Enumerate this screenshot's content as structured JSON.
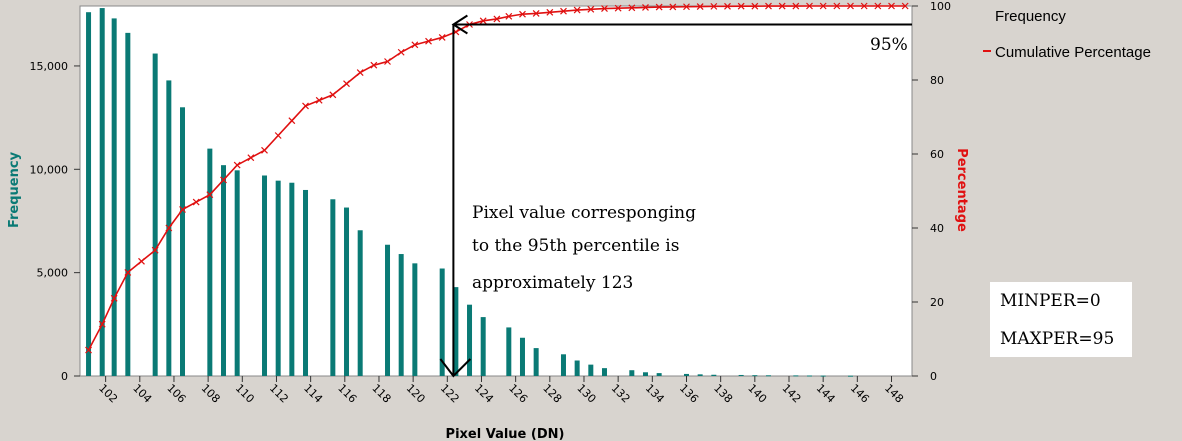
{
  "chart_data": {
    "type": "bar",
    "xlabel": "Pixel Value (DN)",
    "ylabel": "Frequency",
    "y2label": "Percentage",
    "xlim": [
      100.5,
      149.2
    ],
    "ylim": [
      0,
      17900
    ],
    "y2lim": [
      0,
      100
    ],
    "x_ticks": [
      102,
      104,
      106,
      108,
      110,
      112,
      114,
      116,
      118,
      120,
      122,
      124,
      126,
      128,
      130,
      132,
      134,
      136,
      138,
      140,
      142,
      144,
      146,
      148
    ],
    "y_ticks": [
      0,
      5000,
      10000,
      15000
    ],
    "y_tick_labels": [
      "0",
      "5,000",
      "10,000",
      "15,000"
    ],
    "y2_ticks": [
      0,
      20,
      40,
      60,
      80,
      100
    ],
    "y2_tick_labels": [
      "0",
      "20",
      "40",
      "60",
      "80",
      "100"
    ],
    "bar_color": "#0a7a75",
    "line_color": "#e01010",
    "legend": {
      "position": "top-right",
      "items": [
        {
          "label": "Frequency",
          "marker": "none"
        },
        {
          "label": "Cumulative Percentage",
          "marker": "line",
          "color": "#e01010"
        }
      ]
    },
    "series": [
      {
        "name": "Frequency",
        "kind": "bar",
        "x": [
          101,
          101.8,
          102.5,
          103.3,
          104.9,
          105.7,
          106.5,
          108.1,
          108.9,
          109.7,
          111.3,
          112.1,
          112.9,
          113.7,
          115.3,
          116.1,
          116.9,
          118.5,
          119.3,
          120.1,
          121.7,
          122.5,
          123.3,
          124.1,
          125.6,
          126.4,
          127.2,
          128.8,
          129.6,
          130.4,
          131.2,
          132.8,
          133.6,
          134.4,
          136,
          136.8,
          137.6,
          139.2,
          140,
          140.8,
          142.4,
          143.2,
          144,
          145.6
        ],
        "values": [
          17600,
          17800,
          17300,
          16600,
          15600,
          14300,
          13000,
          11000,
          10200,
          9950,
          9700,
          9450,
          9350,
          9000,
          8550,
          8150,
          7050,
          6350,
          5900,
          5450,
          5200,
          4300,
          3450,
          2850,
          2350,
          1850,
          1350,
          1050,
          750,
          550,
          380,
          280,
          180,
          140,
          100,
          80,
          60,
          50,
          40,
          35,
          30,
          25,
          20,
          15
        ]
      },
      {
        "name": "Cumulative Percentage",
        "kind": "line",
        "x": [
          101,
          101.8,
          102.5,
          103.3,
          104.1,
          104.9,
          105.7,
          106.5,
          107.3,
          108.1,
          108.9,
          109.7,
          110.5,
          111.3,
          112.1,
          112.9,
          113.7,
          114.5,
          115.3,
          116.1,
          116.9,
          117.7,
          118.5,
          119.3,
          120.1,
          120.9,
          121.7,
          122.5,
          123.3,
          124.1,
          124.9,
          125.6,
          126.4,
          127.2,
          128,
          128.8,
          129.6,
          130.4,
          131.2,
          132,
          132.8,
          133.6,
          134.4,
          135.2,
          136,
          136.8,
          137.6,
          138.4,
          139.2,
          140,
          140.8,
          141.6,
          142.4,
          143.2,
          144,
          144.8,
          145.6,
          146.4,
          147.2,
          148,
          148.8
        ],
        "values": [
          7,
          14,
          21,
          28,
          31,
          34,
          40,
          45,
          47,
          49,
          53,
          57,
          59,
          61,
          65,
          69,
          73,
          74.5,
          76,
          79,
          82,
          84,
          85,
          87.5,
          89.5,
          90.5,
          91.5,
          93,
          95,
          96,
          96.5,
          97.2,
          97.8,
          98,
          98.3,
          98.6,
          98.9,
          99.1,
          99.3,
          99.4,
          99.5,
          99.6,
          99.7,
          99.75,
          99.8,
          99.85,
          99.9,
          99.92,
          99.94,
          99.96,
          99.97,
          99.98,
          99.99,
          100,
          100,
          100,
          100,
          100,
          100,
          100,
          100
        ]
      }
    ],
    "annotations": [
      {
        "id": "pct-label",
        "text": "95%"
      },
      {
        "id": "note",
        "lines": [
          "Pixel value corresponging",
          "to the 95th percentile is",
          "approximately 123"
        ]
      },
      {
        "id": "params",
        "lines": [
          "MINPER=0",
          "MAXPER=95"
        ]
      }
    ],
    "annotation_geometry": {
      "percentile_value": 95,
      "pixel_value": 123
    }
  }
}
